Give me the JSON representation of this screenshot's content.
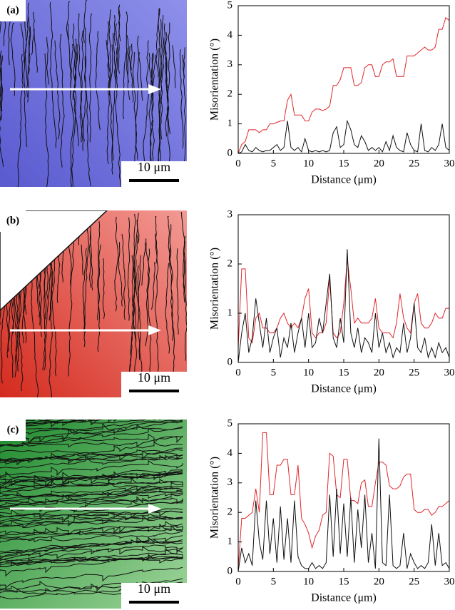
{
  "chart_data": [
    {
      "type": "line",
      "panel_label": "(a)",
      "scale_bar": "10 μm",
      "map_color": [
        "#5a5ad0",
        "#8e90ea"
      ],
      "xlabel": "Distance (μm)",
      "ylabel": "Misorientation (°)",
      "xlim": [
        0,
        30
      ],
      "xticks": [
        0,
        5,
        10,
        15,
        20,
        25,
        30
      ],
      "ylim": [
        0,
        5
      ],
      "yticks": [
        0,
        1,
        2,
        3,
        4,
        5
      ],
      "x": [
        0,
        0.5,
        1,
        1.5,
        2,
        2.5,
        3,
        3.5,
        4,
        4.5,
        5,
        5.5,
        6,
        6.5,
        7,
        7.5,
        8,
        8.5,
        9,
        9.5,
        10,
        10.5,
        11,
        11.5,
        12,
        12.5,
        13,
        13.5,
        14,
        14.5,
        15,
        15.5,
        16,
        16.5,
        17,
        17.5,
        18,
        18.5,
        19,
        19.5,
        20,
        20.5,
        21,
        21.5,
        22,
        22.5,
        23,
        23.5,
        24,
        24.5,
        25,
        25.5,
        26,
        26.5,
        27,
        27.5,
        28,
        28.5,
        29,
        29.5,
        30
      ],
      "series": [
        {
          "color": "#e0262b",
          "values": [
            0,
            0.3,
            0.4,
            0.8,
            0.8,
            0.8,
            0.7,
            0.8,
            0.8,
            1.0,
            1.0,
            1.05,
            1.1,
            1.1,
            1.8,
            2.0,
            1.3,
            1.3,
            1.3,
            1.1,
            1.1,
            1.4,
            1.5,
            1.5,
            1.45,
            1.5,
            1.6,
            2.3,
            2.3,
            2.5,
            2.9,
            2.9,
            2.9,
            2.3,
            2.3,
            2.4,
            2.9,
            3.0,
            3.0,
            2.6,
            2.6,
            3.0,
            3.1,
            3.1,
            3.2,
            2.6,
            2.6,
            2.6,
            3.3,
            3.3,
            3.3,
            3.4,
            3.5,
            3.6,
            3.5,
            3.5,
            3.6,
            4.2,
            4.2,
            4.6,
            4.5
          ]
        },
        {
          "color": "#111111",
          "values": [
            0,
            0.05,
            0.3,
            0.1,
            0.05,
            0.2,
            0.1,
            0.05,
            0.1,
            0.1,
            0.2,
            0.3,
            0.1,
            0.2,
            1.1,
            0.2,
            0.1,
            0.2,
            0.05,
            0.5,
            0.1,
            0.05,
            0.1,
            0.05,
            0.1,
            0.05,
            0.1,
            0.7,
            0.9,
            0.2,
            0.3,
            1.1,
            0.8,
            0.3,
            0.2,
            0.6,
            0.4,
            0.1,
            0.2,
            0.1,
            0.2,
            0.05,
            0.4,
            0.1,
            0.6,
            0.2,
            0.1,
            0.05,
            0.7,
            0.3,
            0.1,
            0.05,
            1.0,
            0.1,
            0.05,
            0.2,
            0.1,
            0.3,
            1.0,
            0.2,
            0.1
          ]
        }
      ]
    },
    {
      "type": "line",
      "panel_label": "(b)",
      "scale_bar": "10 μm",
      "map_color": [
        "#d42a1e",
        "#f39a94"
      ],
      "xlabel": "Distance (μm)",
      "ylabel": "Misorientation (°)",
      "xlim": [
        0,
        30
      ],
      "xticks": [
        0,
        5,
        10,
        15,
        20,
        25,
        30
      ],
      "ylim": [
        0,
        3
      ],
      "yticks": [
        0,
        1,
        2,
        3
      ],
      "x": [
        0,
        0.5,
        1,
        1.5,
        2,
        2.5,
        3,
        3.5,
        4,
        4.5,
        5,
        5.5,
        6,
        6.5,
        7,
        7.5,
        8,
        8.5,
        9,
        9.5,
        10,
        10.5,
        11,
        11.5,
        12,
        12.5,
        13,
        13.5,
        14,
        14.5,
        15,
        15.5,
        16,
        16.5,
        17,
        17.5,
        18,
        18.5,
        19,
        19.5,
        20,
        20.5,
        21,
        21.5,
        22,
        22.5,
        23,
        23.5,
        24,
        24.5,
        25,
        25.5,
        26,
        26.5,
        27,
        27.5,
        28,
        28.5,
        29,
        29.5,
        30
      ],
      "series": [
        {
          "color": "#e0262b",
          "values": [
            0.3,
            1.9,
            1.9,
            0.5,
            0.4,
            0.9,
            1.0,
            0.7,
            0.7,
            0.6,
            0.6,
            0.7,
            0.9,
            1.0,
            0.8,
            0.7,
            0.8,
            0.7,
            0.9,
            1.3,
            1.5,
            0.6,
            0.5,
            0.6,
            0.6,
            0.8,
            1.7,
            0.6,
            0.5,
            0.6,
            1.2,
            2.1,
            1.5,
            0.8,
            0.9,
            0.8,
            0.8,
            0.8,
            0.9,
            1.3,
            0.7,
            0.6,
            0.6,
            0.6,
            0.5,
            0.8,
            1.4,
            0.9,
            0.7,
            0.6,
            1.2,
            1.4,
            0.8,
            0.7,
            0.7,
            0.8,
            1.0,
            0.9,
            0.9,
            1.1,
            1.1
          ]
        },
        {
          "color": "#111111",
          "values": [
            0,
            0.6,
            1.0,
            0.2,
            0.5,
            1.3,
            0.8,
            0.3,
            0.9,
            0.2,
            0.5,
            0.7,
            0.1,
            0.5,
            0.3,
            0.8,
            0.2,
            0.6,
            0.9,
            0.3,
            1.0,
            0.3,
            0.4,
            0.9,
            0.6,
            1.2,
            1.8,
            0.5,
            0.3,
            0.9,
            0.4,
            2.3,
            0.6,
            0.3,
            0.7,
            0.2,
            0.5,
            0.4,
            0.2,
            1.0,
            0.3,
            0.6,
            0.2,
            0.4,
            0.1,
            0.3,
            0.2,
            0.8,
            0.2,
            0.5,
            1.2,
            0.3,
            0.2,
            0.5,
            0.1,
            0.3,
            0.1,
            0.4,
            0.2,
            0.3,
            0.1
          ]
        }
      ]
    },
    {
      "type": "line",
      "panel_label": "(c)",
      "scale_bar": "10 μm",
      "map_color": [
        "#1f8a2e",
        "#9fd69b"
      ],
      "xlabel": "Distance (μm)",
      "ylabel": "Misorientation (°)",
      "xlim": [
        0,
        30
      ],
      "xticks": [
        0,
        5,
        10,
        15,
        20,
        25,
        30
      ],
      "ylim": [
        0,
        5
      ],
      "yticks": [
        0,
        1,
        2,
        3,
        4,
        5
      ],
      "x": [
        0,
        0.5,
        1,
        1.5,
        2,
        2.5,
        3,
        3.5,
        4,
        4.5,
        5,
        5.5,
        6,
        6.5,
        7,
        7.5,
        8,
        8.5,
        9,
        9.5,
        10,
        10.5,
        11,
        11.5,
        12,
        12.5,
        13,
        13.5,
        14,
        14.5,
        15,
        15.5,
        16,
        16.5,
        17,
        17.5,
        18,
        18.5,
        19,
        19.5,
        20,
        20.5,
        21,
        21.5,
        22,
        22.5,
        23,
        23.5,
        24,
        24.5,
        25,
        25.5,
        26,
        26.5,
        27,
        27.5,
        28,
        28.5,
        29,
        29.5,
        30
      ],
      "series": [
        {
          "color": "#e0262b",
          "values": [
            0.1,
            1.8,
            1.8,
            1.9,
            2.0,
            2.8,
            2.0,
            4.7,
            4.7,
            2.6,
            2.6,
            3.6,
            3.6,
            3.8,
            3.8,
            2.6,
            2.6,
            3.6,
            1.8,
            1.6,
            1.3,
            0.8,
            1.2,
            1.4,
            1.9,
            2.0,
            4.0,
            3.9,
            2.6,
            2.5,
            3.8,
            3.8,
            2.4,
            2.4,
            2.3,
            3.0,
            3.1,
            2.2,
            2.2,
            3.0,
            3.7,
            3.7,
            3.6,
            2.9,
            2.8,
            2.8,
            2.9,
            3.2,
            3.3,
            3.3,
            2.1,
            2.0,
            2.0,
            2.1,
            2.1,
            1.9,
            2.0,
            2.2,
            2.2,
            2.3,
            2.4
          ]
        },
        {
          "color": "#111111",
          "values": [
            0,
            0.8,
            0.3,
            0.6,
            0.2,
            2.4,
            1.0,
            0.4,
            2.4,
            0.6,
            1.8,
            0.3,
            2.2,
            0.4,
            1.8,
            0.3,
            2.4,
            0.5,
            0.2,
            0.1,
            0.1,
            0.3,
            0.1,
            0.2,
            0.1,
            0.3,
            2.6,
            0.5,
            2.8,
            0.6,
            2.3,
            0.5,
            2.5,
            0.3,
            2.1,
            0.8,
            2.6,
            0.3,
            1.3,
            0.1,
            4.5,
            0.3,
            0.2,
            2.6,
            0.2,
            0.1,
            0.2,
            1.3,
            0.1,
            0.6,
            0.3,
            0.1,
            0.2,
            0.1,
            0.3,
            1.6,
            0.2,
            1.3,
            0.2,
            0.3,
            0.1
          ]
        }
      ]
    }
  ]
}
